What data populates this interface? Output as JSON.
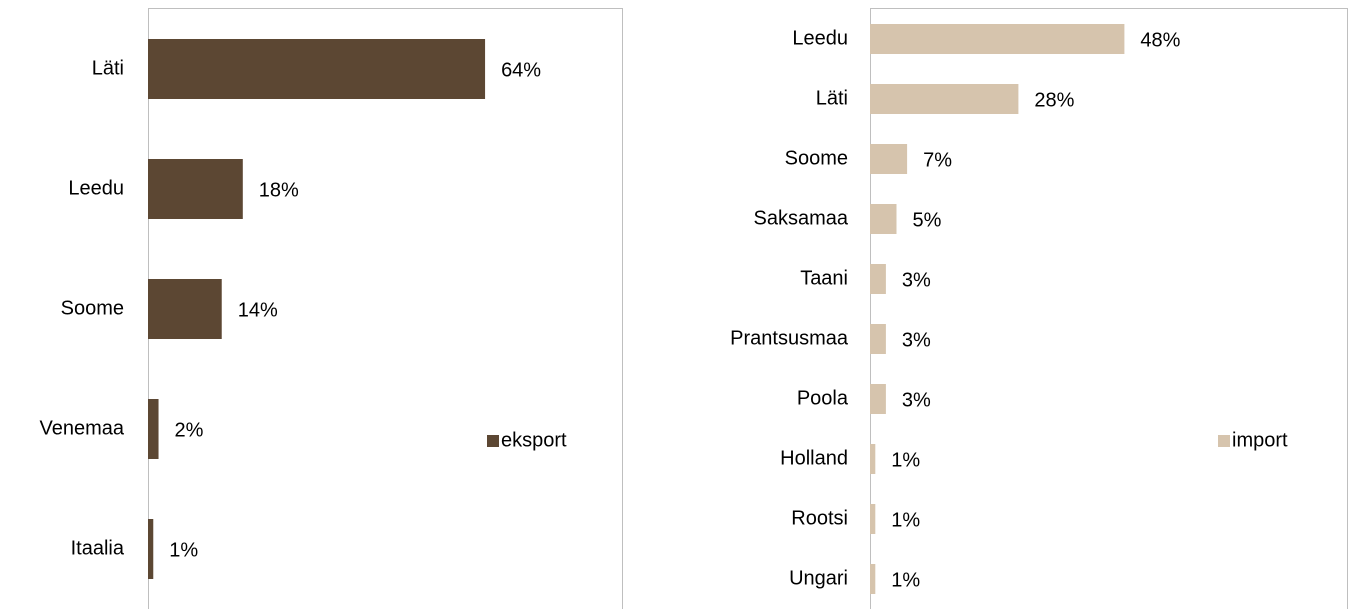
{
  "chart_data": [
    {
      "type": "bar",
      "orientation": "horizontal",
      "categories": [
        "Läti",
        "Leedu",
        "Soome",
        "Venemaa",
        "Itaalia"
      ],
      "series": [
        {
          "name": "eksport",
          "color": "#5c4733",
          "values": [
            64,
            18,
            14,
            2,
            1
          ],
          "value_labels": [
            "64%",
            "18%",
            "14%",
            "2%",
            "1%"
          ]
        }
      ],
      "xlim": [
        0,
        90
      ],
      "legend": "right"
    },
    {
      "type": "bar",
      "orientation": "horizontal",
      "categories": [
        "Leedu",
        "Läti",
        "Soome",
        "Saksamaa",
        "Taani",
        "Prantsusmaa",
        "Poola",
        "Holland",
        "Rootsi",
        "Ungari"
      ],
      "series": [
        {
          "name": "import",
          "color": "#d6c4ad",
          "values": [
            48,
            28,
            7,
            5,
            3,
            3,
            3,
            1,
            1,
            1
          ],
          "value_labels": [
            "48%",
            "28%",
            "7%",
            "5%",
            "3%",
            "3%",
            "3%",
            "1%",
            "1%",
            "1%"
          ]
        }
      ],
      "xlim": [
        0,
        90
      ],
      "legend": "right"
    }
  ]
}
